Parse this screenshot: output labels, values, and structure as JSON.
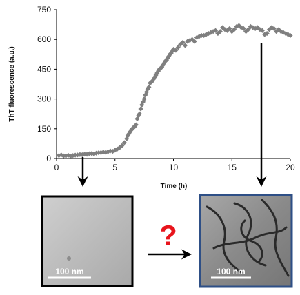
{
  "chart_data": {
    "type": "scatter",
    "title": "",
    "xlabel": "Time (h)",
    "ylabel": "ThT fluorescence (a.u.)",
    "xlim": [
      0,
      20
    ],
    "ylim": [
      0,
      750
    ],
    "x_ticks": [
      0,
      5,
      10,
      15,
      20
    ],
    "y_ticks": [
      0,
      150,
      300,
      450,
      600,
      750
    ],
    "grid": false,
    "series": [
      {
        "marker": "diamond",
        "color": "#7f7f7f",
        "x": [
          0.2,
          0.4,
          0.6,
          0.8,
          1.0,
          1.2,
          1.4,
          1.6,
          1.8,
          2.0,
          2.2,
          2.4,
          2.6,
          2.8,
          3.0,
          3.2,
          3.4,
          3.6,
          3.8,
          4.0,
          4.2,
          4.4,
          4.6,
          4.8,
          5.0,
          5.2,
          5.4,
          5.6,
          5.8,
          6.0,
          6.1,
          6.2,
          6.3,
          6.4,
          6.5,
          6.6,
          6.7,
          6.8,
          6.9,
          7.0,
          7.1,
          7.2,
          7.3,
          7.4,
          7.5,
          7.6,
          7.7,
          7.8,
          7.9,
          8.0,
          8.1,
          8.2,
          8.3,
          8.4,
          8.5,
          8.6,
          8.7,
          8.8,
          8.9,
          9.0,
          9.1,
          9.2,
          9.3,
          9.4,
          9.5,
          9.6,
          9.7,
          9.8,
          9.9,
          10.0,
          10.2,
          10.4,
          10.6,
          10.8,
          11.0,
          11.2,
          11.4,
          11.6,
          11.8,
          12.0,
          12.2,
          12.4,
          12.6,
          12.8,
          13.0,
          13.2,
          13.4,
          13.6,
          13.8,
          14.0,
          14.2,
          14.4,
          14.6,
          14.8,
          15.0,
          15.2,
          15.4,
          15.6,
          15.8,
          16.0,
          16.2,
          16.4,
          16.6,
          16.8,
          17.0,
          17.2,
          17.4,
          17.6,
          17.8,
          18.0,
          18.2,
          18.4,
          18.6,
          18.8,
          19.0,
          19.2,
          19.4,
          19.6,
          19.8,
          20.0
        ],
        "y": [
          15,
          18,
          13,
          14,
          16,
          12,
          15,
          17,
          18,
          20,
          19,
          22,
          21,
          24,
          25,
          23,
          27,
          29,
          30,
          32,
          31,
          34,
          38,
          36,
          42,
          48,
          55,
          65,
          80,
          100,
          115,
          125,
          135,
          145,
          150,
          158,
          162,
          170,
          200,
          215,
          225,
          250,
          270,
          285,
          300,
          320,
          335,
          350,
          360,
          380,
          385,
          390,
          400,
          410,
          420,
          430,
          440,
          450,
          455,
          460,
          470,
          480,
          490,
          495,
          505,
          515,
          525,
          530,
          540,
          550,
          545,
          560,
          575,
          585,
          570,
          590,
          595,
          600,
          590,
          610,
          615,
          620,
          620,
          625,
          630,
          635,
          640,
          645,
          630,
          640,
          660,
          650,
          645,
          655,
          640,
          650,
          665,
          670,
          660,
          655,
          640,
          650,
          665,
          660,
          655,
          660,
          650,
          645,
          625,
          630,
          650,
          660,
          655,
          640,
          650,
          640,
          635,
          630,
          625,
          620
        ]
      }
    ]
  },
  "micrographs": {
    "left_scale_label": "100 nm",
    "right_scale_label": "100 nm",
    "question_mark": "?"
  }
}
